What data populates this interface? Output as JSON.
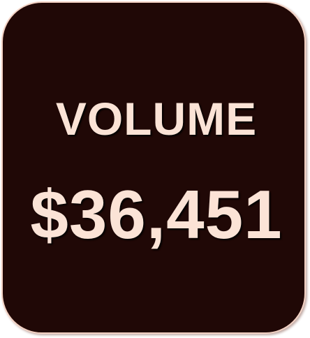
{
  "card": {
    "label": "VOLUME",
    "value": "$36,451"
  },
  "colors": {
    "card_background": "#200806",
    "card_border": "#f3d2c4",
    "text": "#fbe3d6"
  }
}
